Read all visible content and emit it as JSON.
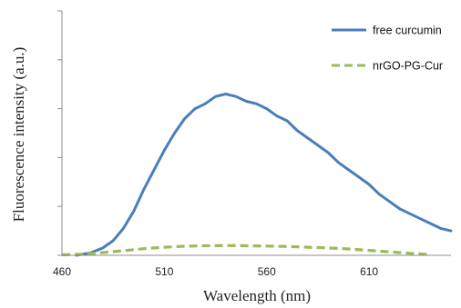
{
  "chart_data": {
    "type": "line",
    "title": "",
    "xlabel": "Wavelength (nm)",
    "ylabel": "Fluorescence intensity (a.u.)",
    "xlim": [
      460,
      650
    ],
    "ylim": [
      0,
      100
    ],
    "xticks": [
      "460",
      "510",
      "560",
      "610"
    ],
    "y_tick_labels_shown": false,
    "grid": false,
    "legend_position": "top-right",
    "series": [
      {
        "name": "free curcumin",
        "color": "#4a7ebb",
        "dash": "solid",
        "x": [
          467,
          474,
          480,
          485,
          490,
          495,
          500,
          505,
          510,
          515,
          520,
          525,
          530,
          535,
          540,
          545,
          550,
          555,
          560,
          565,
          570,
          575,
          580,
          585,
          590,
          595,
          600,
          605,
          610,
          615,
          620,
          625,
          630,
          635,
          640,
          645,
          650
        ],
        "y": [
          0,
          1,
          3,
          6,
          11,
          18,
          27,
          35,
          43,
          50,
          56,
          60,
          62,
          65,
          66,
          65,
          63,
          62,
          60,
          57,
          55,
          51,
          48,
          45,
          42,
          38,
          35,
          32,
          29,
          25,
          22,
          19,
          17,
          15,
          13,
          11,
          10
        ]
      },
      {
        "name": "nrGO-PG-Cur",
        "color": "#9bbb59",
        "dash": "dashed",
        "x": [
          460,
          470,
          480,
          490,
          500,
          510,
          520,
          530,
          540,
          550,
          560,
          570,
          580,
          590,
          600,
          610,
          620,
          630,
          640
        ],
        "y": [
          0.2,
          0.5,
          1.1,
          1.9,
          2.7,
          3.3,
          3.7,
          3.9,
          4.0,
          3.9,
          3.8,
          3.6,
          3.3,
          3.0,
          2.6,
          2.0,
          1.4,
          0.8,
          0.3
        ]
      }
    ]
  }
}
